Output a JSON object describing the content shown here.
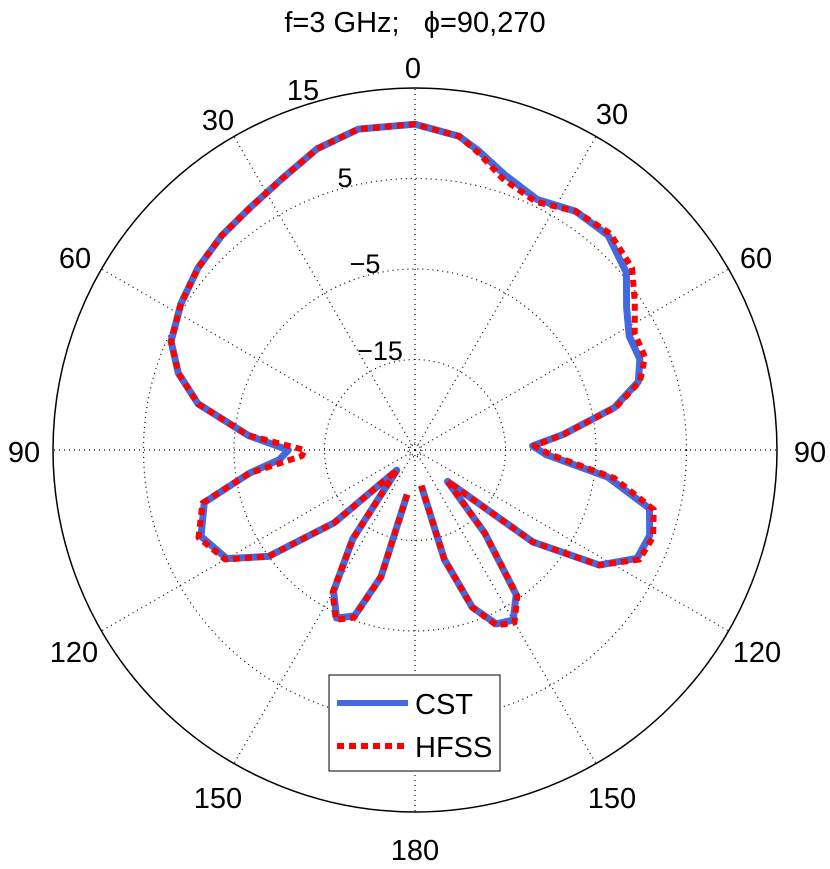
{
  "title": "f=3 GHz;   ϕ=90,270",
  "angle_ticks_left": [
    "15",
    "30",
    "60",
    "90",
    "120",
    "150"
  ],
  "angle_ticks_right": [
    "30",
    "60",
    "90",
    "120",
    "150"
  ],
  "angle_tick_top": "0",
  "angle_tick_bottom": "180",
  "radial_ticks": [
    "5",
    "−5",
    "−15"
  ],
  "legend": [
    "CST",
    "HFSS"
  ],
  "colors": {
    "cst": "#4169e1",
    "hfss": "#ff0000",
    "grid": "#000000",
    "axis": "#000000"
  },
  "chart_data": {
    "type": "polar-line",
    "theta_unit": "degrees (0 at top, 180 at bottom; left half = ϕ 270, right half = ϕ 90)",
    "r_unit": "dB",
    "rlim": [
      -25,
      15
    ],
    "radial_ticks": [
      5,
      -5,
      -15
    ],
    "grid": true,
    "legend_position": "bottom-center",
    "series": [
      {
        "name": "CST",
        "style": "solid",
        "points": [
          [
            -170,
            -20
          ],
          [
            -165,
            -10.5
          ],
          [
            -160,
            -5.5
          ],
          [
            -155,
            -4.5
          ],
          [
            -150,
            -7
          ],
          [
            -145,
            -13
          ],
          [
            -138,
            -22
          ],
          [
            -132,
            -13
          ],
          [
            -126,
            -5
          ],
          [
            -120,
            -1
          ],
          [
            -112,
            0.5
          ],
          [
            -104,
            -1
          ],
          [
            -98,
            -6.5
          ],
          [
            -94,
            -10
          ],
          [
            -90,
            -11
          ],
          [
            -85,
            -6.5
          ],
          [
            -78,
            -0.5
          ],
          [
            -72,
            2.5
          ],
          [
            -66,
            4.5
          ],
          [
            -58,
            5.5
          ],
          [
            -50,
            6.3
          ],
          [
            -42,
            6.9
          ],
          [
            -34,
            7.4
          ],
          [
            -26,
            8.4
          ],
          [
            -18,
            10
          ],
          [
            -10,
            11
          ],
          [
            0,
            11
          ],
          [
            8,
            10
          ],
          [
            12,
            8.8
          ],
          [
            18,
            7
          ],
          [
            26,
            5.8
          ],
          [
            34,
            6.8
          ],
          [
            42,
            6.9
          ],
          [
            50,
            5.5
          ],
          [
            56,
            3.2
          ],
          [
            62,
            1.8
          ],
          [
            68,
            1.8
          ],
          [
            73,
            0.8
          ],
          [
            78,
            -2.5
          ],
          [
            84,
            -8.5
          ],
          [
            88,
            -12
          ],
          [
            92,
            -10.5
          ],
          [
            98,
            -3.5
          ],
          [
            104,
            1.7
          ],
          [
            110,
            2.6
          ],
          [
            116,
            2.3
          ],
          [
            122,
            -1
          ],
          [
            128,
            -8.5
          ],
          [
            134,
            -20
          ],
          [
            140,
            -13
          ],
          [
            145,
            -5.5
          ],
          [
            150,
            -3.3
          ],
          [
            155,
            -3.8
          ],
          [
            160,
            -6.5
          ],
          [
            165,
            -12.5
          ],
          [
            170,
            -21
          ]
        ]
      },
      {
        "name": "HFSS",
        "style": "dashed",
        "points": [
          [
            -170,
            -20
          ],
          [
            -165,
            -10.5
          ],
          [
            -160,
            -5.3
          ],
          [
            -155,
            -4.3
          ],
          [
            -150,
            -6.8
          ],
          [
            -145,
            -13
          ],
          [
            -138,
            -22
          ],
          [
            -132,
            -13
          ],
          [
            -126,
            -5
          ],
          [
            -120,
            -0.8
          ],
          [
            -112,
            0.8
          ],
          [
            -104,
            -0.8
          ],
          [
            -98,
            -6.5
          ],
          [
            -93,
            -12.5
          ],
          [
            -90,
            -12.8
          ],
          [
            -85,
            -6.5
          ],
          [
            -78,
            -0.5
          ],
          [
            -72,
            2.5
          ],
          [
            -66,
            4.5
          ],
          [
            -58,
            5.5
          ],
          [
            -50,
            6.3
          ],
          [
            -42,
            6.9
          ],
          [
            -34,
            7.4
          ],
          [
            -26,
            8.4
          ],
          [
            -18,
            10
          ],
          [
            -10,
            11
          ],
          [
            0,
            11
          ],
          [
            8,
            10
          ],
          [
            12,
            8.6
          ],
          [
            18,
            6.5
          ],
          [
            26,
            5.5
          ],
          [
            34,
            6.8
          ],
          [
            42,
            7.2
          ],
          [
            50,
            6.3
          ],
          [
            56,
            4.3
          ],
          [
            62,
            2.5
          ],
          [
            68,
            2.4
          ],
          [
            73,
            1.0
          ],
          [
            78,
            -2.3
          ],
          [
            84,
            -8.5
          ],
          [
            88,
            -11.8
          ],
          [
            92,
            -10
          ],
          [
            98,
            -2.8
          ],
          [
            104,
            2.2
          ],
          [
            110,
            3.0
          ],
          [
            116,
            2.6
          ],
          [
            122,
            -1
          ],
          [
            128,
            -8.5
          ],
          [
            134,
            -20
          ],
          [
            140,
            -13
          ],
          [
            145,
            -5.3
          ],
          [
            150,
            -3.0
          ],
          [
            155,
            -3.6
          ],
          [
            160,
            -6.5
          ],
          [
            165,
            -12.5
          ],
          [
            170,
            -21
          ]
        ]
      }
    ]
  }
}
